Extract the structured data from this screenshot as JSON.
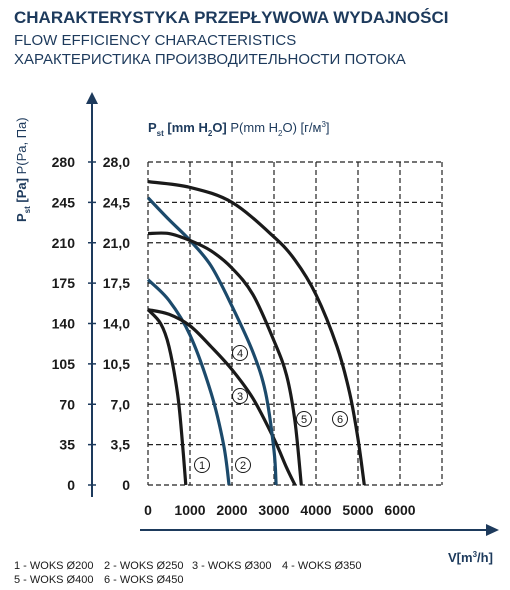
{
  "chart_data": {
    "type": "line",
    "title": "CHARAKTERYSTYKA PRZEPŁYWOWA WYDAJNOŚCI",
    "subtitle": [
      "FLOW EFFICIENCY CHARACTERISTICS",
      "ХАРАКТЕРИСТИКА ПРОИЗВОДИТЕЛЬНОСТИ ПОТОКА"
    ],
    "y_label": [
      "P",
      "st",
      " [Pa]",
      " P(Pa, Па)"
    ],
    "y2_label": [
      "P",
      "st",
      " [mm H",
      "2",
      "O]",
      " P(mm H",
      "2",
      "O) [г/м",
      "3",
      "]"
    ],
    "x_label": [
      "V[m",
      "3",
      "/h]"
    ],
    "xlim": [
      0,
      7000
    ],
    "xticks": [
      0,
      1000,
      2000,
      3000,
      4000,
      5000,
      6000
    ],
    "ylim": [
      0,
      280
    ],
    "yticks": [
      0,
      35,
      70,
      105,
      140,
      175,
      210,
      245,
      280
    ],
    "y2lim": [
      0,
      28
    ],
    "y2ticks": [
      0,
      {
        "value": 3.5,
        "label": "3,5"
      },
      {
        "value": 7,
        "label": "7,0"
      },
      {
        "value": 10.5,
        "label": "10,5"
      },
      {
        "value": 14,
        "label": "14,0"
      },
      {
        "value": 17.5,
        "label": "17,5"
      },
      {
        "value": 21,
        "label": "21,0"
      },
      {
        "value": 24.5,
        "label": "24,5"
      },
      {
        "value": 28,
        "label": "28,0"
      }
    ],
    "grid": true,
    "series": [
      {
        "label": "1",
        "name": "WOKS Ø200",
        "color": "#1a1a1a",
        "x": [
          0,
          300,
          500,
          700,
          800,
          900
        ],
        "values": [
          152,
          140,
          120,
          80,
          45,
          0
        ]
      },
      {
        "label": "2",
        "name": "WOKS Ø250",
        "color": "#1c4a6b",
        "x": [
          0,
          500,
          1000,
          1500,
          1800,
          1930
        ],
        "values": [
          178,
          160,
          130,
          80,
          35,
          0
        ]
      },
      {
        "label": "3",
        "name": "WOKS Ø300",
        "color": "#1a1a1a",
        "x": [
          0,
          500,
          1000,
          1500,
          2000,
          2500,
          3000,
          3300,
          3500
        ],
        "values": [
          152,
          148,
          138,
          120,
          100,
          75,
          40,
          15,
          0
        ]
      },
      {
        "label": "4",
        "name": "WOKS Ø350",
        "color": "#1c4a6b",
        "x": [
          0,
          500,
          1000,
          1500,
          2000,
          2500,
          2800,
          3000,
          3050
        ],
        "values": [
          249,
          230,
          212,
          190,
          155,
          115,
          80,
          30,
          0
        ]
      },
      {
        "label": "5",
        "name": "WOKS Ø400",
        "color": "#1a1a1a",
        "x": [
          0,
          500,
          1000,
          1500,
          2000,
          2500,
          3000,
          3300,
          3500,
          3650
        ],
        "values": [
          218,
          218,
          212,
          203,
          188,
          165,
          125,
          95,
          55,
          0
        ]
      },
      {
        "label": "6",
        "name": "WOKS Ø450",
        "color": "#1a1a1a",
        "x": [
          0,
          1000,
          2000,
          3000,
          3500,
          4000,
          4500,
          4800,
          5000,
          5150
        ],
        "values": [
          263,
          258,
          245,
          215,
          195,
          165,
          120,
          80,
          40,
          0
        ]
      }
    ],
    "legend": [
      "1 - WOKS Ø200",
      "2 - WOKS Ø250",
      "3 - WOKS Ø300",
      "4 - WOKS Ø350",
      "5 - WOKS Ø400",
      "6 - WOKS Ø450"
    ]
  }
}
